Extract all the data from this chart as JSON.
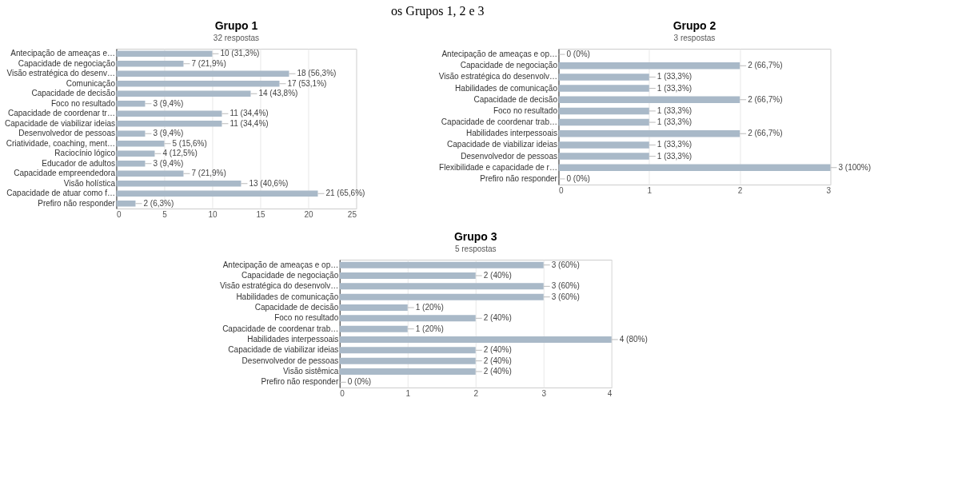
{
  "chart_data": [
    {
      "type": "bar",
      "orientation": "horizontal",
      "title": "Grupo 1",
      "subtitle": "32 respostas",
      "annotations": [
        "os Grupos 1, 2 e 3"
      ],
      "categories": [
        "Antecipação de ameaças e…",
        "Capacidade de negociação",
        "Visão estratégica do desenv…",
        "Comunicação",
        "Capacidade de decisão",
        "Foco no resultado",
        "Capacidade de coordenar tr…",
        "Capacidade de viabilizar ideias",
        "Desenvolvedor de pessoas",
        "Criatividade, coaching, ment…",
        "Raciocínio lógico",
        "Educador de adultos",
        "Capacidade empreendedora",
        "Visão holística",
        "Capacidade de atuar como f…",
        "Prefiro não responder"
      ],
      "values": [
        10,
        7,
        18,
        17,
        14,
        3,
        11,
        11,
        3,
        5,
        4,
        3,
        7,
        13,
        21,
        2
      ],
      "value_labels": [
        "10 (31,3%)",
        "7 (21,9%)",
        "18 (56,3%)",
        "17 (53,1%)",
        "14 (43,8%)",
        "3 (9,4%)",
        "11 (34,4%)",
        "11 (34,4%)",
        "3 (9,4%)",
        "5 (15,6%)",
        "4 (12,5%)",
        "3 (9,4%)",
        "7 (21,9%)",
        "13 (40,6%)",
        "21 (65,6%)",
        "2 (6,3%)"
      ],
      "color": "#a9b9c8",
      "xlim": [
        0,
        25
      ],
      "xticks": [
        0,
        5,
        10,
        15,
        20,
        25
      ],
      "grid": "x"
    },
    {
      "type": "bar",
      "orientation": "horizontal",
      "title": "Grupo 2",
      "subtitle": "3 respostas",
      "categories": [
        "Antecipação de ameaças e op…",
        "Capacidade de negociação",
        "Visão estratégica do desenvolv…",
        "Habilidades de comunicação",
        "Capacidade de decisão",
        "Foco no resultado",
        "Capacidade de coordenar trab…",
        "Habilidades interpessoais",
        "Capacidade de viabilizar ideias",
        "Desenvolvedor de pessoas",
        "Flexibilidade e capacidade de r…",
        "Prefiro não responder"
      ],
      "values": [
        0,
        2,
        1,
        1,
        2,
        1,
        1,
        2,
        1,
        1,
        3,
        0
      ],
      "value_labels": [
        "0 (0%)",
        "2 (66,7%)",
        "1 (33,3%)",
        "1 (33,3%)",
        "2 (66,7%)",
        "1 (33,3%)",
        "1 (33,3%)",
        "2 (66,7%)",
        "1 (33,3%)",
        "1 (33,3%)",
        "3 (100%)",
        "0 (0%)"
      ],
      "color": "#a9b9c8",
      "xlim": [
        0,
        3
      ],
      "xticks": [
        0,
        1,
        2,
        3
      ],
      "grid": "x"
    },
    {
      "type": "bar",
      "orientation": "horizontal",
      "title": "Grupo 3",
      "subtitle": "5 respostas",
      "categories": [
        "Antecipação de ameaças e op…",
        "Capacidade de negociação",
        "Visão estratégica do desenvolv…",
        "Habilidades de comunicação",
        "Capacidade de decisão",
        "Foco no resultado",
        "Capacidade de coordenar trab…",
        "Habilidades interpessoais",
        "Capacidade de viabilizar ideias",
        "Desenvolvedor de pessoas",
        "Visão sistêmica",
        "Prefiro não responder"
      ],
      "values": [
        3,
        2,
        3,
        3,
        1,
        2,
        1,
        4,
        2,
        2,
        2,
        0
      ],
      "value_labels": [
        "3 (60%)",
        "2 (40%)",
        "3 (60%)",
        "3 (60%)",
        "1 (20%)",
        "2 (40%)",
        "1 (20%)",
        "4 (80%)",
        "2 (40%)",
        "2 (40%)",
        "2 (40%)",
        "0 (0%)"
      ],
      "color": "#a9b9c8",
      "xlim": [
        0,
        4
      ],
      "xticks": [
        0,
        1,
        2,
        3,
        4
      ],
      "grid": "x"
    }
  ]
}
